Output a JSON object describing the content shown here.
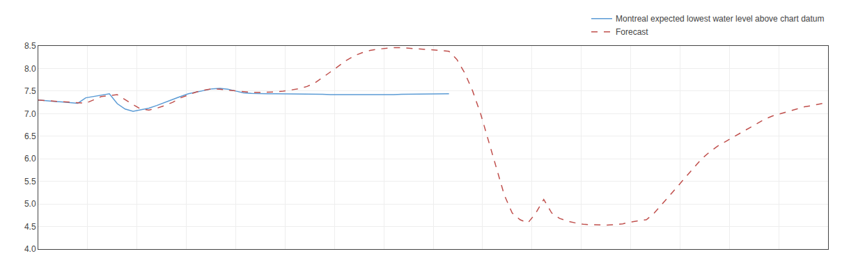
{
  "chart_data": {
    "type": "line",
    "xlim": [
      0,
      100
    ],
    "xticks": [
      0,
      6.25,
      12.5,
      18.75,
      25,
      31.25,
      37.5,
      43.75,
      50,
      56.25,
      62.5,
      68.75,
      75,
      81.25,
      87.5,
      93.75,
      100
    ],
    "ylim": [
      4.0,
      8.5
    ],
    "yticks": [
      {
        "value": 4.0,
        "label": "4.0"
      },
      4.5,
      {
        "value": 5.0,
        "label": "5.0"
      },
      5.5,
      {
        "value": 6.0,
        "label": "6.0"
      },
      6.5,
      {
        "value": 7.0,
        "label": "7.0"
      },
      7.5,
      {
        "value": 8.0,
        "label": "8.0"
      },
      8.5
    ],
    "tick_labels": "y",
    "grid": true,
    "legend": "upper right",
    "series": [
      {
        "name": "Montreal expected lowest water level above chart datum",
        "color": "#5B9BD5",
        "line_style": "solid",
        "x": [
          0,
          1,
          2,
          3,
          4,
          5,
          6,
          7,
          8,
          9,
          10,
          11,
          12,
          13,
          14,
          15,
          16,
          17,
          18,
          19,
          20,
          21,
          22,
          23,
          24,
          25,
          26,
          27,
          28,
          29,
          30,
          31,
          32,
          33,
          34,
          35,
          36,
          37,
          38,
          39,
          40,
          41,
          42,
          43,
          44,
          45,
          46,
          47,
          48,
          49,
          50,
          51,
          52
        ],
        "values": [
          7.3,
          7.28,
          7.27,
          7.26,
          7.24,
          7.23,
          7.35,
          7.38,
          7.42,
          7.44,
          7.22,
          7.1,
          7.05,
          7.08,
          7.12,
          7.18,
          7.25,
          7.32,
          7.38,
          7.44,
          7.48,
          7.52,
          7.55,
          7.56,
          7.54,
          7.5,
          7.46,
          7.45,
          7.44,
          7.44,
          7.44,
          7.44,
          7.44,
          7.44,
          7.44,
          7.43,
          7.43,
          7.42,
          7.42,
          7.41,
          7.41,
          7.41,
          7.41,
          7.42,
          7.42,
          7.42,
          7.43,
          7.43,
          7.43,
          7.44,
          7.44,
          7.44,
          7.44
        ]
      },
      {
        "name": "Forecast",
        "color": "#C0504D",
        "line_style": "dashed",
        "x": [
          0,
          2,
          4,
          6,
          8,
          10,
          12,
          13,
          14,
          15,
          16,
          17,
          18,
          19,
          20,
          21,
          22,
          23,
          24,
          25,
          26,
          27,
          28,
          29,
          30,
          31,
          32,
          33,
          34,
          35,
          36,
          37,
          38,
          39,
          40,
          41,
          42,
          43,
          44,
          45,
          46,
          47,
          48,
          49,
          50,
          51,
          52,
          53,
          54,
          55,
          56,
          57,
          58,
          59,
          60,
          61,
          62,
          63,
          64,
          65,
          66,
          67,
          68,
          69,
          70,
          71,
          72,
          73,
          74,
          75,
          76,
          77,
          78,
          79,
          80,
          81,
          82,
          83,
          84,
          85,
          86,
          87,
          88,
          89,
          90,
          91,
          92,
          93,
          94,
          95,
          96,
          97,
          98,
          99,
          100
        ],
        "values": [
          7.3,
          7.28,
          7.25,
          7.23,
          7.38,
          7.42,
          7.2,
          7.1,
          7.08,
          7.12,
          7.18,
          7.25,
          7.35,
          7.42,
          7.48,
          7.52,
          7.55,
          7.54,
          7.52,
          7.5,
          7.48,
          7.47,
          7.47,
          7.47,
          7.48,
          7.5,
          7.52,
          7.55,
          7.6,
          7.68,
          7.8,
          7.92,
          8.05,
          8.18,
          8.28,
          8.35,
          8.4,
          8.43,
          8.45,
          8.46,
          8.46,
          8.45,
          8.44,
          8.43,
          8.42,
          8.4,
          8.38,
          8.2,
          7.9,
          7.5,
          7.0,
          6.4,
          5.8,
          5.2,
          4.8,
          4.65,
          4.58,
          4.8,
          5.1,
          4.8,
          4.68,
          4.62,
          4.58,
          4.55,
          4.54,
          4.53,
          4.53,
          4.54,
          4.56,
          4.6,
          4.62,
          4.65,
          4.8,
          5.0,
          5.2,
          5.4,
          5.6,
          5.8,
          6.0,
          6.15,
          6.28,
          6.38,
          6.48,
          6.58,
          6.68,
          6.78,
          6.88,
          6.95,
          7.0,
          7.05,
          7.1,
          7.15,
          7.18,
          7.22,
          7.25
        ]
      }
    ]
  }
}
